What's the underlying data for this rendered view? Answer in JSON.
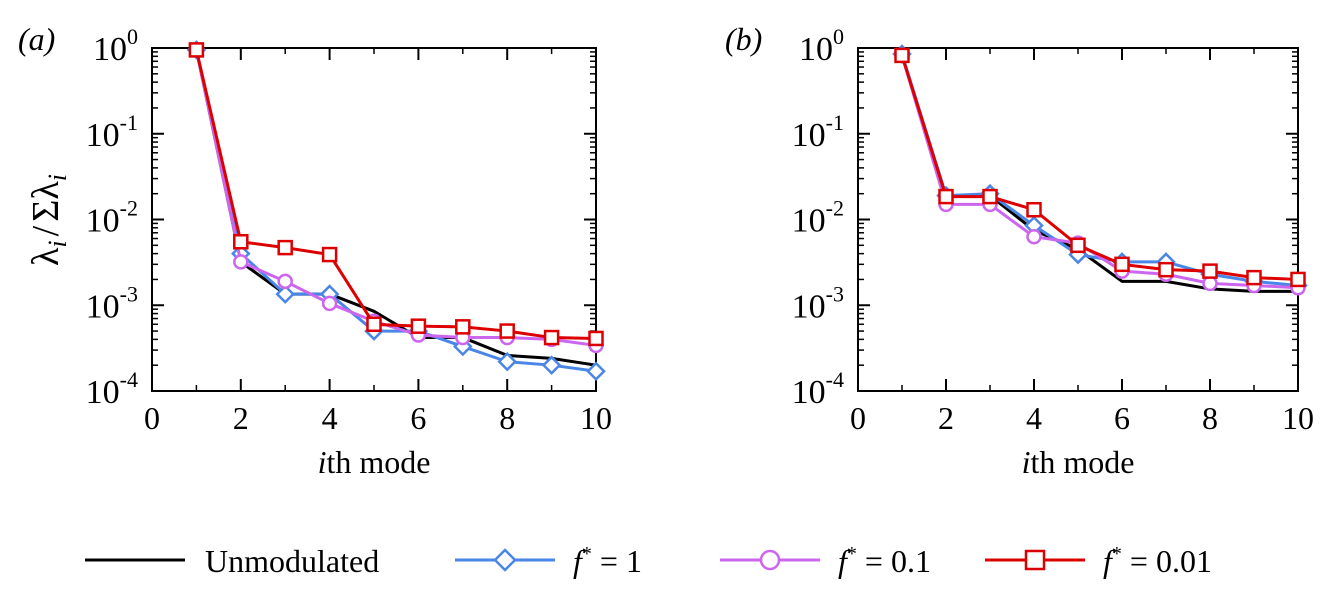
{
  "chart_data": [
    {
      "panel": "(a)",
      "type": "line",
      "xlabel": "ith mode",
      "xlabel_italic": "i",
      "xlabel_rest": "th mode",
      "ylabel": "λ_i / Σλ_i",
      "yscale": "log",
      "xlim": [
        0,
        10
      ],
      "ylim": [
        0.0001,
        1
      ],
      "xticks": [
        0,
        2,
        4,
        6,
        8,
        10
      ],
      "yticks": [
        {
          "base": "10",
          "exp": "-4"
        },
        {
          "base": "10",
          "exp": "-3"
        },
        {
          "base": "10",
          "exp": "-2"
        },
        {
          "base": "10",
          "exp": "-1"
        },
        {
          "base": "10",
          "exp": "0"
        }
      ],
      "x": [
        1,
        2,
        3,
        4,
        5,
        6,
        7,
        8,
        9,
        10
      ],
      "series": [
        {
          "name": "Unmodulated",
          "values": [
            0.95,
            0.0032,
            0.00135,
            0.00135,
            0.00085,
            0.00042,
            0.00042,
            0.00026,
            0.00024,
            0.0002
          ]
        },
        {
          "name": "f* = 1",
          "values": [
            0.95,
            0.004,
            0.00135,
            0.00135,
            0.0005,
            0.0005,
            0.00033,
            0.00022,
            0.0002,
            0.00017
          ]
        },
        {
          "name": "f* = 0.1",
          "values": [
            0.95,
            0.0032,
            0.0019,
            0.00105,
            0.00065,
            0.00045,
            0.00042,
            0.00042,
            0.0004,
            0.00034
          ]
        },
        {
          "name": "f* = 0.01",
          "values": [
            0.95,
            0.0055,
            0.0047,
            0.0039,
            0.0006,
            0.00057,
            0.00056,
            0.0005,
            0.00042,
            0.00041
          ]
        }
      ]
    },
    {
      "panel": "(b)",
      "type": "line",
      "xlabel": "ith mode",
      "xlabel_italic": "i",
      "xlabel_rest": "th mode",
      "yscale": "log",
      "xlim": [
        0,
        10
      ],
      "ylim": [
        0.0001,
        1
      ],
      "xticks": [
        0,
        2,
        4,
        6,
        8,
        10
      ],
      "yticks": [
        {
          "base": "10",
          "exp": "-4"
        },
        {
          "base": "10",
          "exp": "-3"
        },
        {
          "base": "10",
          "exp": "-2"
        },
        {
          "base": "10",
          "exp": "-1"
        },
        {
          "base": "10",
          "exp": "0"
        }
      ],
      "x": [
        1,
        2,
        3,
        4,
        5,
        6,
        7,
        8,
        9,
        10
      ],
      "series": [
        {
          "name": "Unmodulated",
          "values": [
            0.82,
            0.019,
            0.019,
            0.0075,
            0.0045,
            0.0019,
            0.0019,
            0.00155,
            0.00145,
            0.00145
          ]
        },
        {
          "name": "f* = 1",
          "values": [
            0.85,
            0.019,
            0.02,
            0.0085,
            0.0039,
            0.0032,
            0.0032,
            0.0023,
            0.0019,
            0.0017
          ]
        },
        {
          "name": "f* = 0.1",
          "values": [
            0.82,
            0.015,
            0.015,
            0.0063,
            0.0053,
            0.0025,
            0.0023,
            0.0018,
            0.0017,
            0.0016
          ]
        },
        {
          "name": "f* = 0.01",
          "values": [
            0.82,
            0.0185,
            0.0185,
            0.013,
            0.005,
            0.003,
            0.0026,
            0.0025,
            0.0021,
            0.002
          ]
        }
      ]
    }
  ],
  "legend": {
    "placement": "bottom",
    "entries": [
      {
        "series": "Unmodulated",
        "label": "Unmodulated",
        "color": "#000000",
        "marker": "none"
      },
      {
        "series": "f* = 1",
        "prefix": "f",
        "sup": "*",
        "suffix": " = 1",
        "color": "#4a86e8",
        "marker": "diamond"
      },
      {
        "series": "f* = 0.1",
        "prefix": "f",
        "sup": "*",
        "suffix": " = 0.1",
        "color": "#cc66ee",
        "marker": "circle"
      },
      {
        "series": "f* = 0.01",
        "prefix": "f",
        "sup": "*",
        "suffix": " = 0.01",
        "color": "#dd0000",
        "marker": "square"
      }
    ]
  },
  "styles": {
    "Unmodulated": {
      "color": "#000000",
      "marker": "none"
    },
    "f* = 1": {
      "color": "#4a86e8",
      "marker": "diamond"
    },
    "f* = 0.1": {
      "color": "#cc66ee",
      "marker": "circle"
    },
    "f* = 0.01": {
      "color": "#dd0000",
      "marker": "square"
    }
  }
}
